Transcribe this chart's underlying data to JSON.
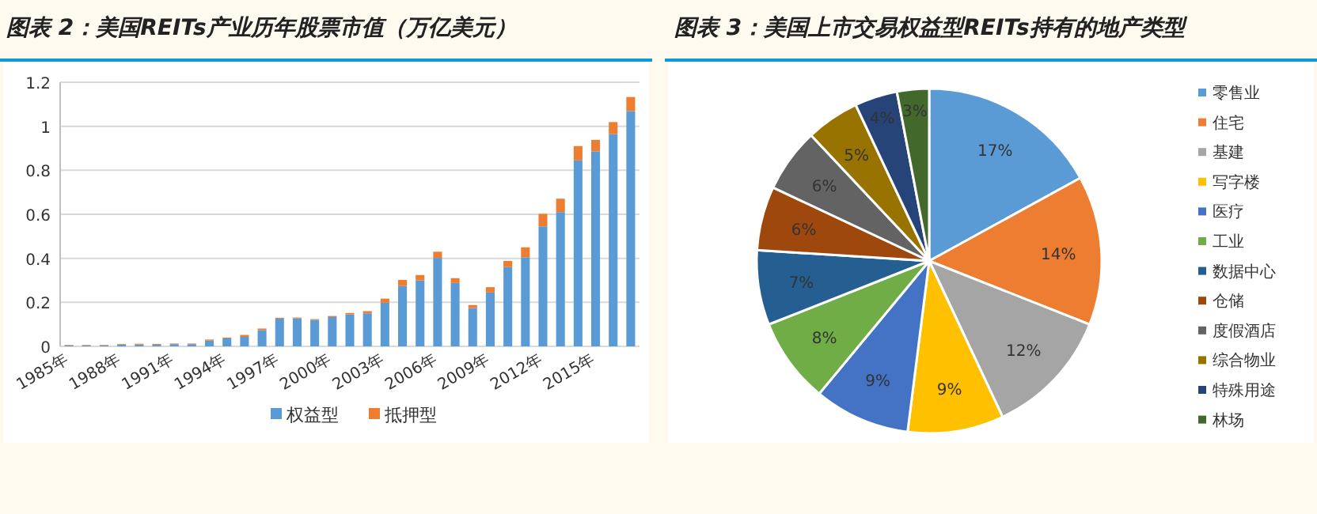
{
  "chart_data": [
    {
      "type": "bar",
      "title": "图表 2：美国REITs产业历年股票市值（万亿美元）",
      "stacked": true,
      "grid": "y",
      "legend": "bottom",
      "categories": [
        "1985年",
        null,
        null,
        "1988年",
        null,
        null,
        "1991年",
        null,
        null,
        "1994年",
        null,
        null,
        "1997年",
        null,
        null,
        "2000年",
        null,
        null,
        "2003年",
        null,
        null,
        "2006年",
        null,
        null,
        "2009年",
        null,
        null,
        "2012年",
        null,
        null,
        "2015年",
        null,
        null
      ],
      "ylim": [
        0,
        1.2
      ],
      "yticks": [
        0,
        0.2,
        0.4,
        0.6,
        0.8,
        1,
        1.2
      ],
      "series": [
        {
          "name": "权益型",
          "color": "#5b9bd5",
          "values": [
            0.005,
            0.005,
            0.005,
            0.008,
            0.008,
            0.007,
            0.01,
            0.01,
            0.026,
            0.036,
            0.043,
            0.074,
            0.126,
            0.127,
            0.12,
            0.133,
            0.145,
            0.15,
            0.198,
            0.274,
            0.3,
            0.402,
            0.288,
            0.174,
            0.245,
            0.36,
            0.405,
            0.545,
            0.61,
            0.845,
            0.886,
            0.964,
            1.069
          ]
        },
        {
          "name": "抵押型",
          "color": "#ed7d31",
          "values": [
            0.002,
            0.002,
            0.002,
            0.003,
            0.004,
            0.004,
            0.003,
            0.003,
            0.005,
            0.004,
            0.009,
            0.007,
            0.004,
            0.004,
            0.004,
            0.005,
            0.007,
            0.01,
            0.019,
            0.028,
            0.024,
            0.028,
            0.022,
            0.014,
            0.024,
            0.028,
            0.045,
            0.057,
            0.061,
            0.065,
            0.052,
            0.055,
            0.064
          ]
        }
      ]
    },
    {
      "type": "pie",
      "title": "图表 3：美国上市交易权益型REITs持有的地产类型",
      "legend": "right",
      "categories": [
        "零售业",
        "住宅",
        "基建",
        "写字楼",
        "医疗",
        "工业",
        "数据中心",
        "仓储",
        "度假酒店",
        "综合物业",
        "特殊用途",
        "林场"
      ],
      "values": [
        17,
        14,
        12,
        9,
        9,
        8,
        7,
        6,
        6,
        5,
        4,
        3
      ],
      "value_labels": [
        "17%",
        "14%",
        "12%",
        "9%",
        "9%",
        "8%",
        "7%",
        "6%",
        "6%",
        "5%",
        "4%",
        "3%"
      ],
      "colors": [
        "#5b9bd5",
        "#ed7d31",
        "#a5a5a5",
        "#ffc000",
        "#4472c4",
        "#70ad47",
        "#255e91",
        "#9e480e",
        "#636363",
        "#997300",
        "#264478",
        "#43682b"
      ]
    }
  ]
}
